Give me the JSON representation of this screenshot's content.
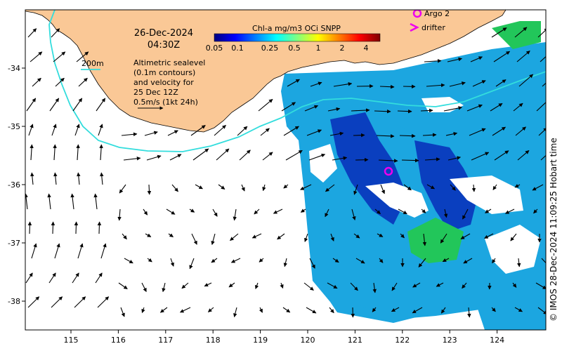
{
  "map": {
    "date": "26-Dec-2024",
    "time": "04:30Z",
    "colorbar_title": "Chl-a mg/m3 OCi SNPP",
    "colorbar_ticks": [
      "0.05",
      "0.1",
      "0.25",
      "0.5",
      "1",
      "2",
      "4"
    ],
    "colorbar_colors": [
      "#00007f",
      "#0000ff",
      "#0080ff",
      "#00ffff",
      "#80ff80",
      "#ffff00",
      "#ff8000",
      "#ff0000",
      "#7f0000"
    ],
    "legend": {
      "argo": "Argo 2",
      "drifter": "drifter"
    },
    "isobath_label": "200m",
    "notes": [
      "Altimetric sealevel",
      "(0.1m contours)",
      "and velocity for",
      "25 Dec 12Z",
      "0.5m/s (1kt 24h)"
    ],
    "credit": "© IMOS 28-Dec-2024 11:09:25 Hobart time",
    "x_ticks": [
      "115",
      "116",
      "117",
      "118",
      "119",
      "120",
      "121",
      "122",
      "123",
      "124"
    ],
    "y_ticks": [
      "-34",
      "-35",
      "-36",
      "-37",
      "-38"
    ],
    "colors": {
      "land": "#fac896",
      "isobath": "#33dddd",
      "argo": "#ee00ee",
      "chl_low": "#0a3fbf",
      "chl_mid": "#1ca6e0",
      "chl_high": "#22c65a"
    }
  }
}
